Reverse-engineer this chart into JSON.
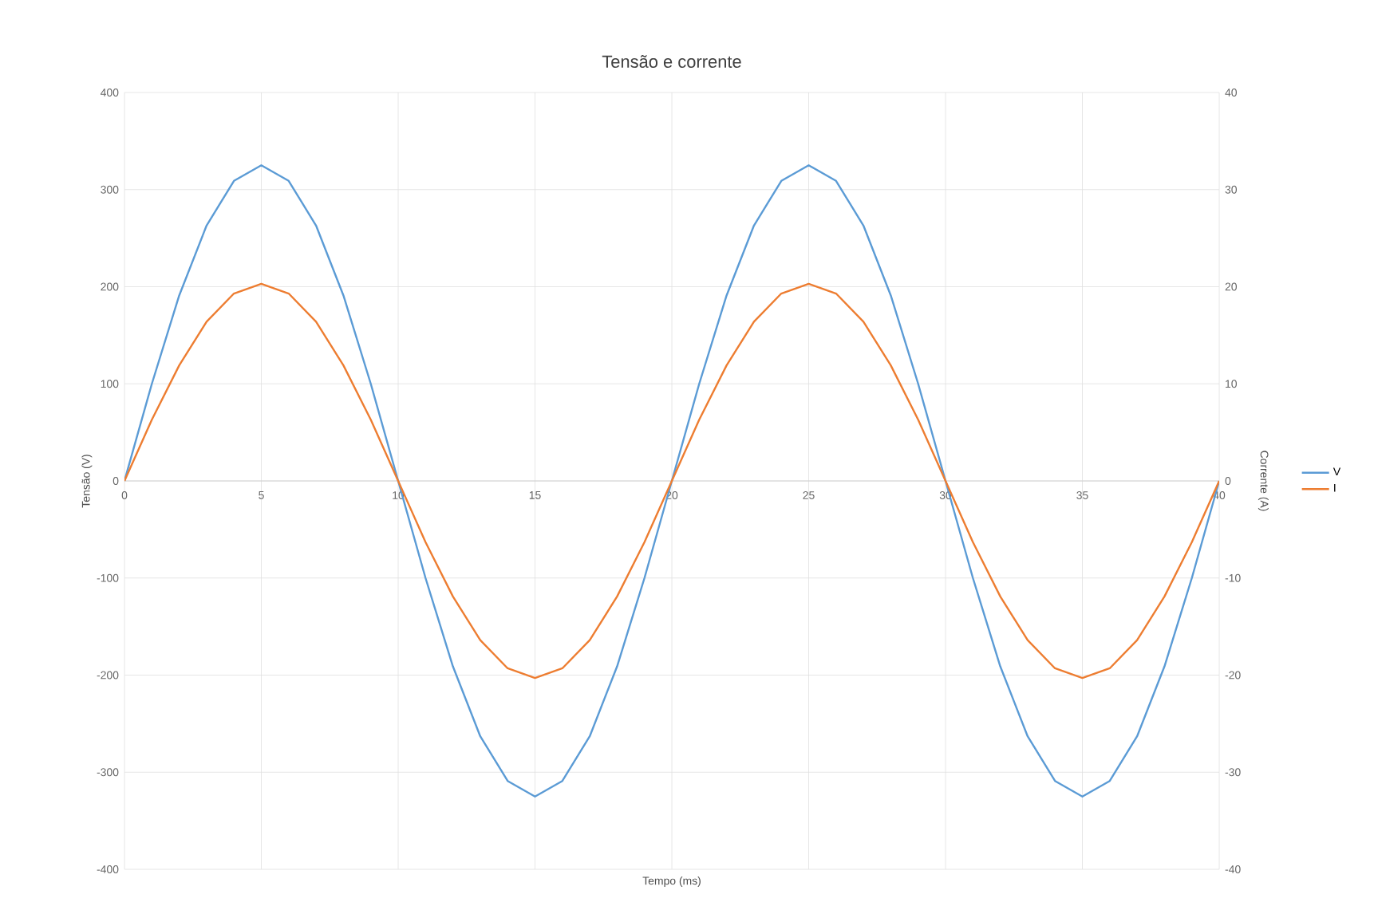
{
  "chart_data": {
    "type": "line",
    "title": "Tensão e corrente",
    "xlabel": "Tempo (ms)",
    "ylabel": "Tensão (V)",
    "y2label": "Corrente (A)",
    "x": [
      0,
      1,
      2,
      3,
      4,
      5,
      6,
      7,
      8,
      9,
      10,
      11,
      12,
      13,
      14,
      15,
      16,
      17,
      18,
      19,
      20,
      21,
      22,
      23,
      24,
      25,
      26,
      27,
      28,
      29,
      30,
      31,
      32,
      33,
      34,
      35,
      36,
      37,
      38,
      39,
      40
    ],
    "series": [
      {
        "name": "V",
        "color": "#5b9bd5",
        "values": [
          0,
          100,
          191,
          263,
          309,
          325,
          309,
          263,
          191,
          100,
          0,
          -100,
          -191,
          -263,
          -309,
          -325,
          -309,
          -263,
          -191,
          -100,
          0,
          100,
          191,
          263,
          309,
          325,
          309,
          263,
          191,
          100,
          0,
          -100,
          -191,
          -263,
          -309,
          -325,
          -309,
          -263,
          -191,
          -100,
          0
        ]
      },
      {
        "name": "I",
        "color": "#ed7d31",
        "axis": "y2",
        "values": [
          0,
          6.3,
          11.9,
          16.4,
          19.3,
          20.3,
          19.3,
          16.4,
          11.9,
          6.3,
          0,
          -6.3,
          -11.9,
          -16.4,
          -19.3,
          -20.3,
          -19.3,
          -16.4,
          -11.9,
          -6.3,
          0,
          6.3,
          11.9,
          16.4,
          19.3,
          20.3,
          19.3,
          16.4,
          11.9,
          6.3,
          0,
          -6.3,
          -11.9,
          -16.4,
          -19.3,
          -20.3,
          -19.3,
          -16.4,
          -11.9,
          -6.3,
          0
        ]
      }
    ],
    "xlim": [
      0,
      40
    ],
    "xticks": [
      0,
      5,
      10,
      15,
      20,
      25,
      30,
      35,
      40
    ],
    "ylim": [
      -400,
      400
    ],
    "yticks": [
      -400,
      -300,
      -200,
      -100,
      0,
      100,
      200,
      300,
      400
    ],
    "y2lim": [
      -40,
      40
    ],
    "y2ticks": [
      -40,
      -30,
      -20,
      -10,
      0,
      10,
      20,
      30,
      40
    ],
    "grid": true,
    "legend": "right",
    "marker": "none",
    "line_style": "solid"
  }
}
